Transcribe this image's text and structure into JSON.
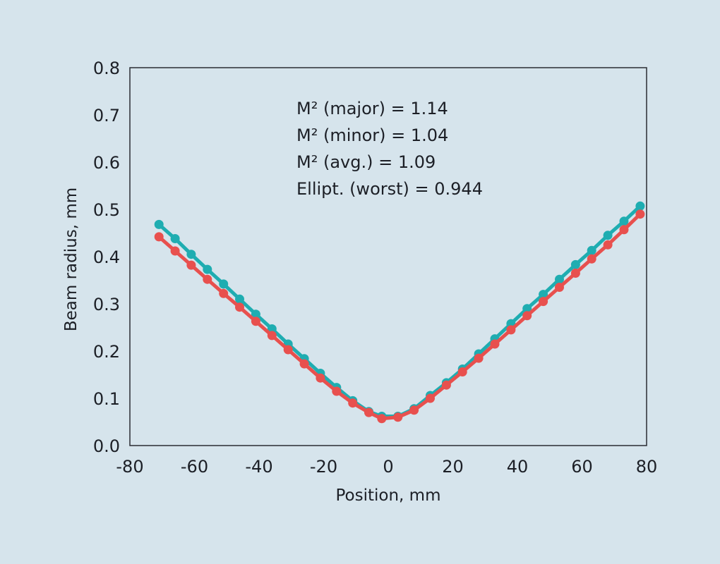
{
  "chart_data": {
    "type": "line",
    "xlabel": "Position, mm",
    "ylabel": "Beam radius, mm",
    "xlim": [
      -80,
      80
    ],
    "ylim": [
      0.0,
      0.8
    ],
    "xticks": [
      "-80",
      "-60",
      "-40",
      "-20",
      "0",
      "20",
      "40",
      "60",
      "80"
    ],
    "yticks": [
      "0.0",
      "0.1",
      "0.2",
      "0.3",
      "0.4",
      "0.5",
      "0.6",
      "0.7",
      "0.8"
    ],
    "grid": false,
    "annotations": [
      "M² (major) = 1.14",
      "M² (minor) = 1.04",
      "M² (avg.) = 1.09",
      "Ellipt. (worst) = 0.944"
    ],
    "series": [
      {
        "color": "#1fadb1",
        "points": [
          [
            -71,
            0.468
          ],
          [
            -66,
            0.438
          ],
          [
            -61,
            0.405
          ],
          [
            -56,
            0.373
          ],
          [
            -51,
            0.342
          ],
          [
            -46,
            0.31
          ],
          [
            -41,
            0.278
          ],
          [
            -36,
            0.247
          ],
          [
            -31,
            0.215
          ],
          [
            -26,
            0.184
          ],
          [
            -21,
            0.153
          ],
          [
            -16,
            0.123
          ],
          [
            -11,
            0.095
          ],
          [
            -6,
            0.072
          ],
          [
            -2,
            0.062
          ],
          [
            3,
            0.062
          ],
          [
            8,
            0.078
          ],
          [
            13,
            0.106
          ],
          [
            18,
            0.133
          ],
          [
            23,
            0.162
          ],
          [
            28,
            0.194
          ],
          [
            33,
            0.226
          ],
          [
            38,
            0.258
          ],
          [
            43,
            0.29
          ],
          [
            48,
            0.32
          ],
          [
            53,
            0.352
          ],
          [
            58,
            0.383
          ],
          [
            63,
            0.413
          ],
          [
            68,
            0.445
          ],
          [
            73,
            0.475
          ],
          [
            78,
            0.507
          ]
        ]
      },
      {
        "color": "#e8504e",
        "points": [
          [
            -71,
            0.442
          ],
          [
            -66,
            0.412
          ],
          [
            -61,
            0.382
          ],
          [
            -56,
            0.352
          ],
          [
            -51,
            0.322
          ],
          [
            -46,
            0.293
          ],
          [
            -41,
            0.263
          ],
          [
            -36,
            0.233
          ],
          [
            -31,
            0.203
          ],
          [
            -26,
            0.173
          ],
          [
            -21,
            0.143
          ],
          [
            -16,
            0.115
          ],
          [
            -11,
            0.09
          ],
          [
            -6,
            0.07
          ],
          [
            -2,
            0.057
          ],
          [
            3,
            0.06
          ],
          [
            8,
            0.075
          ],
          [
            13,
            0.1
          ],
          [
            18,
            0.128
          ],
          [
            23,
            0.156
          ],
          [
            28,
            0.185
          ],
          [
            33,
            0.215
          ],
          [
            38,
            0.245
          ],
          [
            43,
            0.275
          ],
          [
            48,
            0.305
          ],
          [
            53,
            0.335
          ],
          [
            58,
            0.365
          ],
          [
            63,
            0.395
          ],
          [
            68,
            0.425
          ],
          [
            73,
            0.457
          ],
          [
            78,
            0.49
          ]
        ]
      }
    ]
  }
}
